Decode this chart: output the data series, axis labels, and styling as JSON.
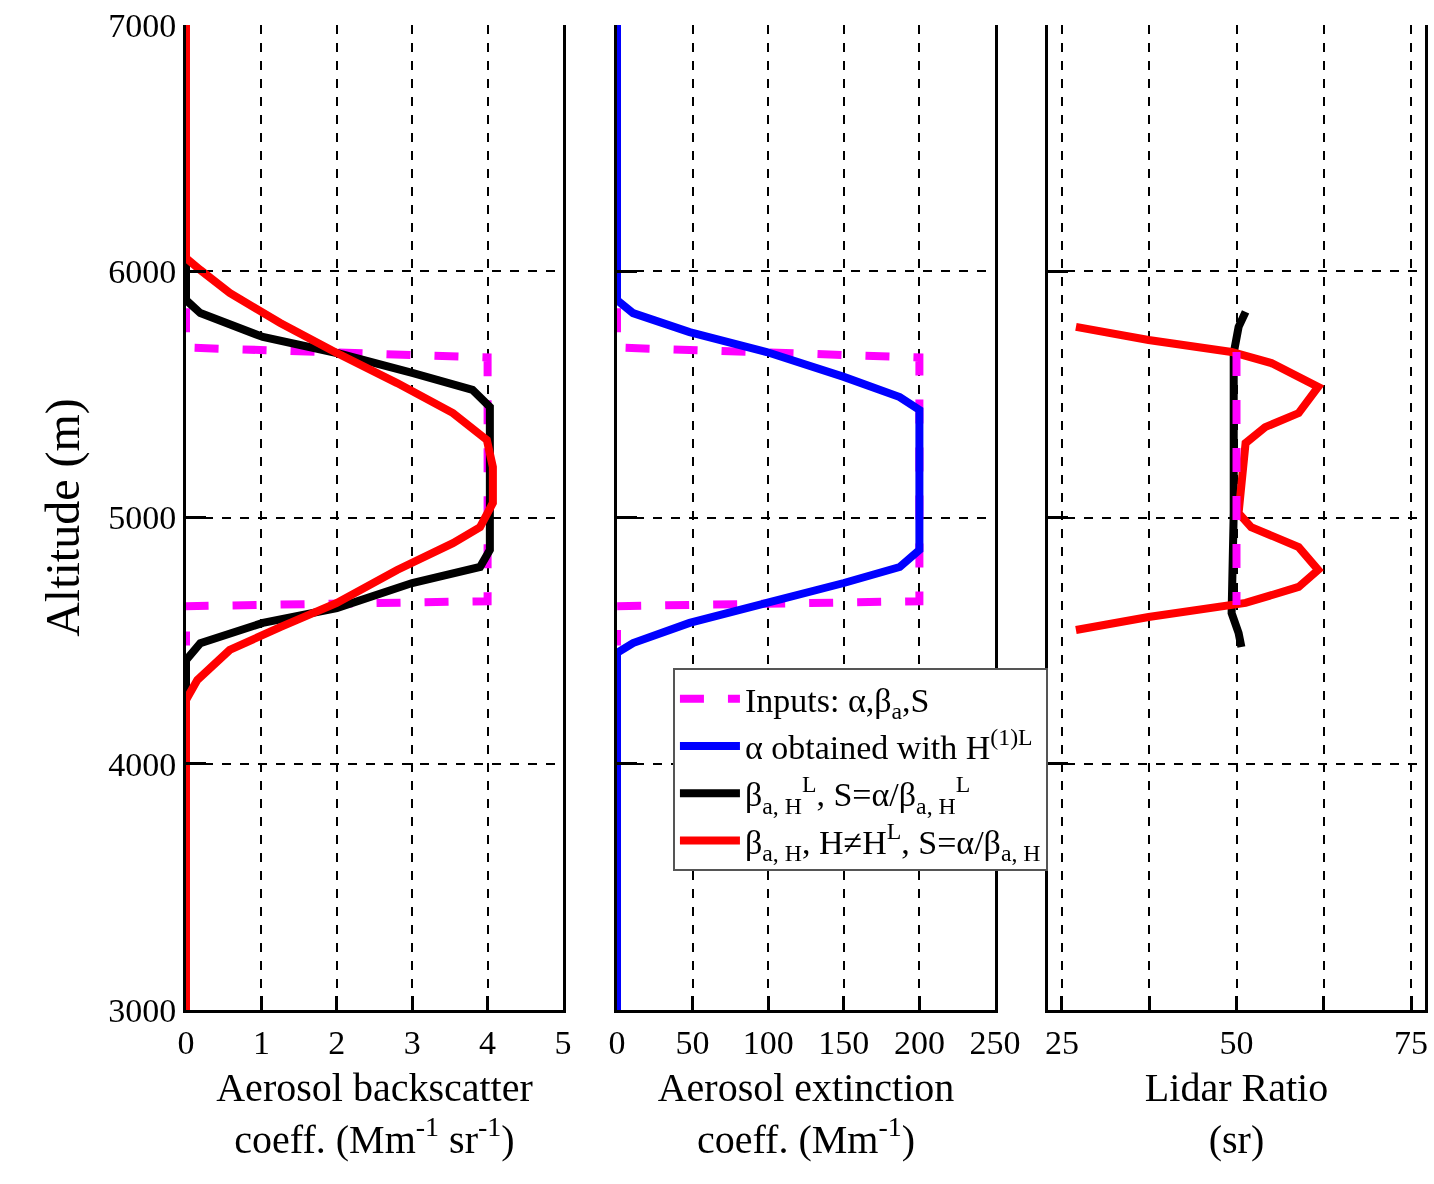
{
  "chart_data": [
    {
      "type": "line",
      "ylabel": "Altitude (m)",
      "xlabel": "Aerosol backscatter\ncoeff. (Mm$^{-1}$ sr$^{-1}$)",
      "xlim": [
        0,
        5
      ],
      "xticks": [
        0,
        1,
        2,
        3,
        4,
        5
      ],
      "ylim": [
        3000,
        7000
      ],
      "yticks": [
        3000,
        4000,
        5000,
        6000,
        7000
      ],
      "grid": true,
      "series": [
        {
          "color": "#ff00ff",
          "line_style": "dashed",
          "x": [
            0,
            0,
            4,
            4,
            0,
            0
          ],
          "values": [
            5850,
            5690,
            5650,
            4660,
            4640,
            4480
          ]
        },
        {
          "name": "β$_{a, H}$$^{L}$, S=α/β$_{a, H}$$^{L}$",
          "color": "#000000",
          "line_style": "solid",
          "x": [
            0,
            0,
            0.19,
            1.02,
            2.0,
            3.0,
            3.8,
            4.03,
            4.03,
            3.9,
            3.0,
            2.0,
            1.02,
            0.19,
            0,
            0
          ],
          "values": [
            7000,
            5883,
            5830,
            5733,
            5668,
            5587,
            5518,
            5449,
            4868,
            4799,
            4734,
            4632,
            4572,
            4490,
            4421,
            3000
          ]
        },
        {
          "name": "β$_{a, H}$, H≠H$^{L}$, S=α/β$_{a, H}$",
          "color": "#ff0000",
          "line_style": "solid",
          "x": [
            0,
            0,
            0.19,
            0.58,
            1.25,
            2.0,
            2.8,
            3.54,
            3.99,
            4.07,
            4.07,
            3.9,
            3.54,
            2.8,
            2.0,
            1.25,
            0.58,
            0.15,
            0,
            0
          ],
          "values": [
            7000,
            6054,
            6005,
            5912,
            5790,
            5668,
            5546,
            5424,
            5315,
            5205,
            5059,
            4961,
            4896,
            4787,
            4653,
            4555,
            4462,
            4340,
            4259,
            3000
          ]
        }
      ]
    },
    {
      "type": "line",
      "xlabel": "Aerosol extinction\ncoeff. (Mm$^{-1}$)",
      "xlim": [
        0,
        250
      ],
      "xticks": [
        0,
        50,
        100,
        150,
        200,
        250
      ],
      "ylim": [
        3000,
        7000
      ],
      "yticks": [
        3000,
        4000,
        5000,
        6000,
        7000
      ],
      "grid": true,
      "tick_labels": "x",
      "legend": "bottom right",
      "series": [
        {
          "name": "Inputs: α,β$_{a}$,S",
          "color": "#ff00ff",
          "line_style": "dashed",
          "x": [
            0,
            0,
            200,
            200,
            0,
            0
          ],
          "values": [
            5850,
            5690,
            5650,
            4660,
            4640,
            4480
          ]
        },
        {
          "name": "α obtained with H$^{(1)L}$",
          "color": "#0000ff",
          "line_style": "solid",
          "x": [
            0,
            0,
            10.6,
            48,
            99,
            150,
            187,
            200,
            200,
            187,
            150,
            99,
            48,
            10.6,
            0,
            0
          ],
          "values": [
            7000,
            5883,
            5830,
            5753,
            5672,
            5571,
            5489,
            5437,
            4868,
            4799,
            4734,
            4653,
            4572,
            4490,
            4450,
            3000
          ]
        }
      ]
    },
    {
      "type": "line",
      "xlabel": "Lidar Ratio\n(sr)",
      "xlim": [
        23,
        77
      ],
      "xticks": [
        25,
        {
          "value": 37.5,
          "label": null
        },
        50,
        {
          "value": 62.5,
          "label": null
        },
        75
      ],
      "ylim": [
        3000,
        7000
      ],
      "yticks": [
        3000,
        4000,
        5000,
        6000,
        7000
      ],
      "grid": true,
      "tick_labels": "x",
      "series": [
        {
          "color": "#000000",
          "line_style": "solid",
          "x": [
            51.3,
            50.3,
            49.6,
            49.6,
            49.3,
            50.3,
            50.7
          ],
          "values": [
            5835,
            5774,
            5668,
            5018,
            4612,
            4531,
            4474
          ]
        },
        {
          "color": "#ff0000",
          "line_style": "solid",
          "x": [
            27,
            37.4,
            49.3,
            55,
            61.7,
            58.9,
            54.1,
            51.3,
            50.3,
            52.1,
            58.9,
            61.7,
            58.9,
            51.3,
            37.4,
            27
          ],
          "values": [
            5774,
            5721,
            5672,
            5627,
            5530,
            5424,
            5367,
            5302,
            5018,
            4961,
            4880,
            4787,
            4718,
            4653,
            4596,
            4543
          ]
        },
        {
          "color": "#ff00ff",
          "line_style": "dashed",
          "x": [
            50,
            50
          ],
          "values": [
            5672,
            4645
          ]
        }
      ]
    }
  ]
}
